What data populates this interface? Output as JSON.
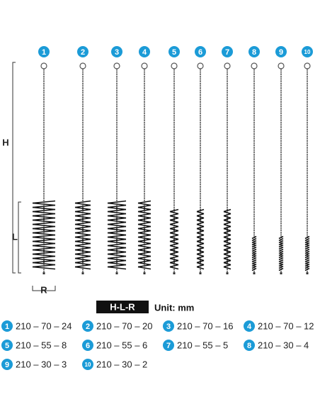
{
  "numbers": [
    "1",
    "2",
    "3",
    "4",
    "5",
    "6",
    "7",
    "8",
    "9",
    "10"
  ],
  "dimensions": {
    "height": "H",
    "length": "L",
    "radius": "R"
  },
  "legend": {
    "key": "H-L-R",
    "unit": "Unit: mm"
  },
  "specs": [
    {
      "number": "1",
      "size": "210 – 70 – 24"
    },
    {
      "number": "2",
      "size": "210 – 70 – 20"
    },
    {
      "number": "3",
      "size": "210 – 70 – 16"
    },
    {
      "number": "4",
      "size": "210 – 70 – 12"
    },
    {
      "number": "5",
      "size": "210 – 55 – 8"
    },
    {
      "number": "6",
      "size": "210 – 55 – 6"
    },
    {
      "number": "7",
      "size": "210 – 55 – 5"
    },
    {
      "number": "8",
      "size": "210 – 30 – 4"
    },
    {
      "number": "9",
      "size": "210 – 30 – 3"
    },
    {
      "number": "10",
      "size": "210 – 30 – 2"
    }
  ]
}
